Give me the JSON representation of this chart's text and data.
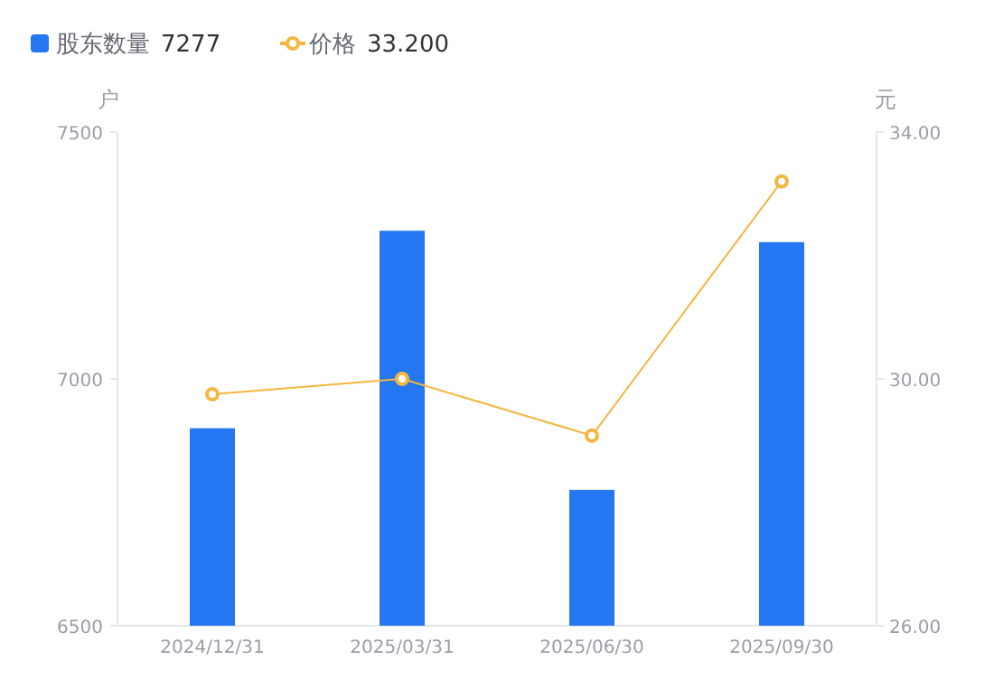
{
  "chart_data": {
    "type": "bar",
    "ylabel": "户",
    "y2label": "元",
    "categories": [
      "2024/12/31",
      "2025/03/31",
      "2025/06/30",
      "2025/09/30"
    ],
    "series": [
      {
        "name": "股东数量",
        "color": "#2476f2",
        "values": [
          6900,
          7300,
          6775,
          7277
        ]
      },
      {
        "name": "价格",
        "type": "line",
        "axis": "y2",
        "color": "#f5b640",
        "values": [
          29.75,
          30.0,
          29.08,
          33.2
        ]
      }
    ],
    "annotations": [
      "7277",
      "33.200"
    ],
    "ylim": [
      6500,
      7500
    ],
    "yticks": [
      6500,
      7000,
      7500
    ],
    "y2lim": [
      26,
      34
    ],
    "y2ticks": [
      {
        "value": 26,
        "label": "26.00"
      },
      {
        "value": 30,
        "label": "30.00"
      },
      {
        "value": 34,
        "label": "34.00"
      }
    ],
    "legend": "top left",
    "marker": "circle",
    "grid": false
  }
}
